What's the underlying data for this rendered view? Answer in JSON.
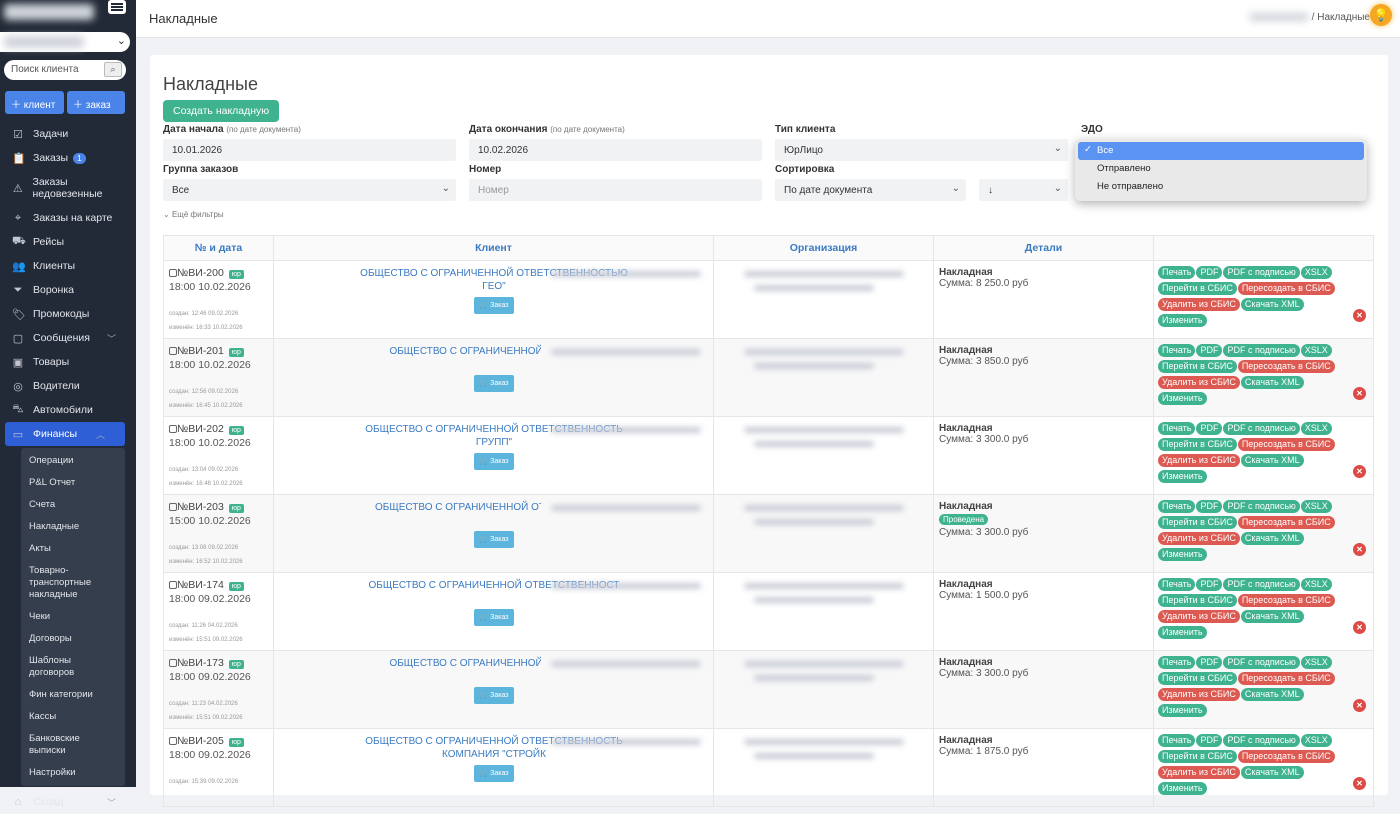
{
  "sidebar": {
    "search_placeholder": "Поиск клиента",
    "add_client": "клиент",
    "add_order": "заказ",
    "items": [
      {
        "label": "Задачи",
        "icon": "checkbox-icon"
      },
      {
        "label": "Заказы",
        "icon": "clipboard-icon",
        "badge": "1"
      },
      {
        "label": "Заказы недовезенные",
        "icon": "warning-icon"
      },
      {
        "label": "Заказы на карте",
        "icon": "map-pin-icon"
      },
      {
        "label": "Рейсы",
        "icon": "truck-icon"
      },
      {
        "label": "Клиенты",
        "icon": "users-icon"
      },
      {
        "label": "Воронка",
        "icon": "funnel-icon"
      },
      {
        "label": "Промокоды",
        "icon": "tag-icon"
      },
      {
        "label": "Сообщения",
        "icon": "message-icon"
      },
      {
        "label": "Товары",
        "icon": "box-icon"
      },
      {
        "label": "Водители",
        "icon": "steering-icon"
      },
      {
        "label": "Автомобили",
        "icon": "car-icon"
      },
      {
        "label": "Финансы",
        "icon": "wallet-icon"
      }
    ],
    "finance_sub": [
      "Операции",
      "P&L Отчет",
      "Счета",
      "Накладные",
      "Акты",
      "Товарно-транспортные накладные",
      "Чеки",
      "Договоры",
      "Шаблоны договоров",
      "Фин категории",
      "Кассы",
      "Банковские выписки",
      "Настройки"
    ],
    "warehouse": "Склад"
  },
  "header": {
    "title": "Накладные",
    "breadcrumb_sep": "/",
    "breadcrumb_current": "Накладные"
  },
  "main": {
    "title": "Накладные",
    "create_button": "Создать накладную",
    "filters": {
      "start_label": "Дата начала",
      "start_hint": "(по дате документа)",
      "start_value": "10.01.2026",
      "end_label": "Дата окончания",
      "end_hint": "(по дате документа)",
      "end_value": "10.02.2026",
      "client_type_label": "Тип клиента",
      "client_type_value": "ЮрЛицо",
      "edo_label": "ЭДО",
      "edo_options": [
        "Все",
        "Отправлено",
        "Не отправлено"
      ],
      "group_label": "Группа заказов",
      "group_value": "Все",
      "number_label": "Номер",
      "number_placeholder": "Номер",
      "sort_label": "Сортировка",
      "sort_value": "По дате документа",
      "sort_dir": "↓",
      "more": "Ещё фильтры"
    },
    "columns": [
      "№ и дата",
      "Клиент",
      "Организация",
      "Детали",
      ""
    ],
    "order_label": "Заказ",
    "yur": "юр",
    "doc_type": "Накладная",
    "actions": [
      {
        "label": "Печать",
        "color": "#3fb28f"
      },
      {
        "label": "PDF",
        "color": "#3fb28f"
      },
      {
        "label": "PDF с подписью",
        "color": "#3fb28f"
      },
      {
        "label": "XSLX",
        "color": "#3fb28f"
      },
      {
        "label": "Перейти в СБИС",
        "color": "#3fb28f"
      },
      {
        "label": "Пересоздать в СБИС",
        "color": "#dc5a52"
      },
      {
        "label": "Удалить из СБИС",
        "color": "#dc5a52"
      },
      {
        "label": "Скачать XML",
        "color": "#3fb28f"
      },
      {
        "label": "Изменить",
        "color": "#3fb28f"
      }
    ],
    "rows": [
      {
        "num": "№ВИ-200",
        "date": "18:00 10.02.2026",
        "created": "создан: 12:46 09.02.2026",
        "modified": "изменён: 16:33 10.02.2026",
        "client": "ОБЩЕСТВО С ОГРАНИЧЕННОЙ ОТВЕТСТВЕННОСТЬЮ",
        "client2": "ГЕО\"",
        "sum": "Сумма: 8 250.0 руб",
        "status": ""
      },
      {
        "num": "№ВИ-201",
        "date": "18:00 10.02.2026",
        "created": "создан: 12:56 09.02.2026",
        "modified": "изменён: 16:45 10.02.2026",
        "client": "ОБЩЕСТВО С ОГРАНИЧЕННОЙ ОТВЕТСТВ",
        "client2": "",
        "sum": "Сумма: 3 850.0 руб",
        "status": ""
      },
      {
        "num": "№ВИ-202",
        "date": "18:00 10.02.2026",
        "created": "создан: 13:04 09.02.2026",
        "modified": "изменён: 16:48 10.02.2026",
        "client": "ОБЩЕСТВО С ОГРАНИЧЕННОЙ ОТВЕТСТВЕННОСТЬ",
        "client2": "ГРУПП\"",
        "sum": "Сумма: 3 300.0 руб",
        "status": ""
      },
      {
        "num": "№ВИ-203",
        "date": "15:00 10.02.2026",
        "created": "создан: 13:08 09.02.2026",
        "modified": "изменён: 16:52 10.02.2026",
        "client": "ОБЩЕСТВО С ОГРАНИЧЕННОЙ ОТВЕТСТВЕННО",
        "client2": "",
        "sum": "Сумма: 3 300.0 руб",
        "status": "Проведена"
      },
      {
        "num": "№ВИ-174",
        "date": "18:00 09.02.2026",
        "created": "создан: 11:26 04.02.2026",
        "modified": "изменён: 15:51 09.02.2026",
        "client": "ОБЩЕСТВО С ОГРАНИЧЕННОЙ ОТВЕТСТВЕННОСТ",
        "client2": "",
        "sum": "Сумма: 1 500.0 руб",
        "status": ""
      },
      {
        "num": "№ВИ-173",
        "date": "18:00 09.02.2026",
        "created": "создан: 11:23 04.02.2026",
        "modified": "изменён: 15:51 09.02.2026",
        "client": "ОБЩЕСТВО С ОГРАНИЧЕННОЙ ОТВЕТСТВ",
        "client2": "",
        "sum": "Сумма: 3 300.0 руб",
        "status": ""
      },
      {
        "num": "№ВИ-205",
        "date": "18:00 09.02.2026",
        "created": "создан: 15:39 09.02.2026",
        "modified": "",
        "client": "ОБЩЕСТВО С ОГРАНИЧЕННОЙ ОТВЕТСТВЕННОСТЬ",
        "client2": "КОМПАНИЯ \"СТРОЙК",
        "sum": "Сумма: 1 875.0 руб",
        "status": ""
      }
    ]
  }
}
